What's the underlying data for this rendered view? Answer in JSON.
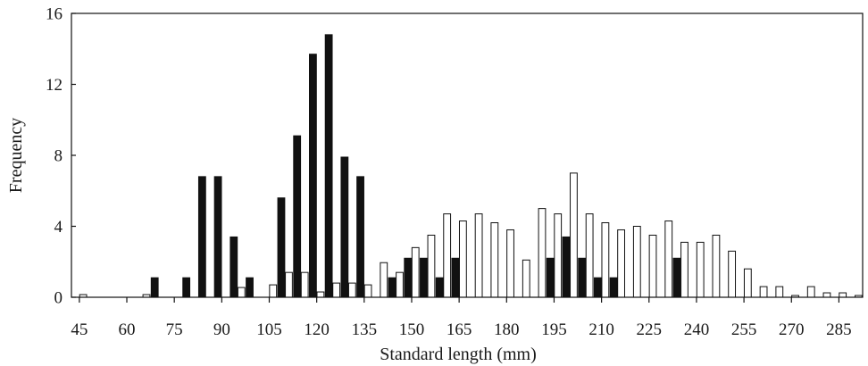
{
  "chart_data": {
    "type": "bar",
    "xlabel": "Standard length (mm)",
    "ylabel": "Frequency",
    "x_ticks": [
      45,
      60,
      75,
      90,
      105,
      120,
      135,
      150,
      165,
      180,
      195,
      210,
      225,
      240,
      255,
      270,
      285
    ],
    "y_ticks": [
      0,
      4,
      8,
      12,
      16
    ],
    "ylim": [
      0,
      16
    ],
    "xlim": [
      42.5,
      292.5
    ],
    "bin_width": 5,
    "grid": false,
    "legend": "none",
    "colors": {
      "solid": "#111111",
      "open": "#ffffff",
      "outline": "#111111"
    },
    "series": [
      {
        "style": "solid",
        "bars": [
          {
            "x": 70,
            "y": 1.1
          },
          {
            "x": 80,
            "y": 1.1
          },
          {
            "x": 85,
            "y": 6.8
          },
          {
            "x": 90,
            "y": 6.8
          },
          {
            "x": 95,
            "y": 3.4
          },
          {
            "x": 100,
            "y": 1.1
          },
          {
            "x": 110,
            "y": 5.6
          },
          {
            "x": 115,
            "y": 9.1
          },
          {
            "x": 120,
            "y": 13.7
          },
          {
            "x": 125,
            "y": 14.8
          },
          {
            "x": 130,
            "y": 7.9
          },
          {
            "x": 135,
            "y": 6.8
          },
          {
            "x": 145,
            "y": 1.1
          },
          {
            "x": 150,
            "y": 2.2
          },
          {
            "x": 155,
            "y": 2.2
          },
          {
            "x": 160,
            "y": 1.1
          },
          {
            "x": 165,
            "y": 2.2
          },
          {
            "x": 195,
            "y": 2.2
          },
          {
            "x": 200,
            "y": 3.4
          },
          {
            "x": 205,
            "y": 2.2
          },
          {
            "x": 210,
            "y": 1.1
          },
          {
            "x": 215,
            "y": 1.1
          },
          {
            "x": 235,
            "y": 2.2
          }
        ]
      },
      {
        "style": "open",
        "bars": [
          {
            "x": 45,
            "y": 0.15
          },
          {
            "x": 65,
            "y": 0.15
          },
          {
            "x": 95,
            "y": 0.55
          },
          {
            "x": 105,
            "y": 0.7
          },
          {
            "x": 110,
            "y": 1.4
          },
          {
            "x": 115,
            "y": 1.4
          },
          {
            "x": 120,
            "y": 0.3
          },
          {
            "x": 125,
            "y": 0.8
          },
          {
            "x": 130,
            "y": 0.8
          },
          {
            "x": 135,
            "y": 0.7
          },
          {
            "x": 140,
            "y": 1.95
          },
          {
            "x": 145,
            "y": 1.4
          },
          {
            "x": 150,
            "y": 2.8
          },
          {
            "x": 155,
            "y": 3.5
          },
          {
            "x": 160,
            "y": 4.7
          },
          {
            "x": 165,
            "y": 4.3
          },
          {
            "x": 170,
            "y": 4.7
          },
          {
            "x": 175,
            "y": 4.2
          },
          {
            "x": 180,
            "y": 3.8
          },
          {
            "x": 185,
            "y": 2.1
          },
          {
            "x": 190,
            "y": 5.0
          },
          {
            "x": 195,
            "y": 4.7
          },
          {
            "x": 200,
            "y": 7.0
          },
          {
            "x": 205,
            "y": 4.7
          },
          {
            "x": 210,
            "y": 4.2
          },
          {
            "x": 215,
            "y": 3.8
          },
          {
            "x": 220,
            "y": 4.0
          },
          {
            "x": 225,
            "y": 3.5
          },
          {
            "x": 230,
            "y": 4.3
          },
          {
            "x": 235,
            "y": 3.1
          },
          {
            "x": 240,
            "y": 3.1
          },
          {
            "x": 245,
            "y": 3.5
          },
          {
            "x": 250,
            "y": 2.6
          },
          {
            "x": 255,
            "y": 1.6
          },
          {
            "x": 260,
            "y": 0.6
          },
          {
            "x": 265,
            "y": 0.6
          },
          {
            "x": 270,
            "y": 0.1
          },
          {
            "x": 275,
            "y": 0.6
          },
          {
            "x": 280,
            "y": 0.25
          },
          {
            "x": 285,
            "y": 0.25
          },
          {
            "x": 290,
            "y": 0.1
          }
        ]
      }
    ]
  }
}
